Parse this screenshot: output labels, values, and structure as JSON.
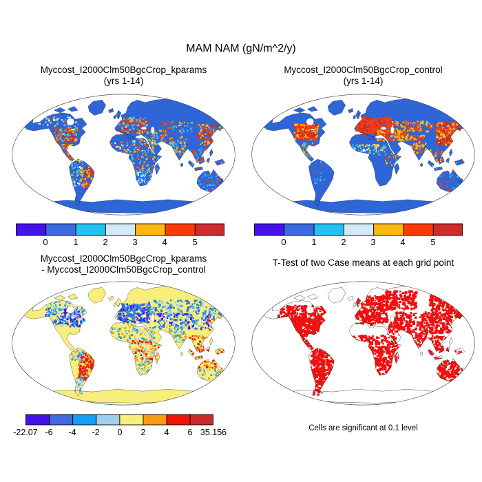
{
  "figure": {
    "title": "MAM NAM (gN/m^2/y)"
  },
  "panels": {
    "kparams": {
      "title1": "Myccost_I2000Clm50BgcCrop_kparams",
      "title2": "(yrs 1-14)"
    },
    "control": {
      "title1": "Myccost_I2000Clm50BgcCrop_control",
      "title2": "(yrs 1-14)"
    },
    "diff": {
      "title1": "Myccost_I2000Clm50BgcCrop_kparams",
      "title2": "- Myccost_I2000Clm50BgcCrop_control"
    },
    "ttest": {
      "title": "T-Test of two Case means at each grid point",
      "caption": "Cells are significant at 0.1 level"
    }
  },
  "colorbars": {
    "top": {
      "colors": [
        "#4513ea",
        "#3c6ae1",
        "#25c1f0",
        "#d4eaf6",
        "#fdb813",
        "#fb3c0a",
        "#cc2c2c"
      ],
      "ticks": [
        "0",
        "1",
        "2",
        "3",
        "4",
        "5"
      ]
    },
    "diff": {
      "colors": [
        "#4513ea",
        "#3f6ad9",
        "#149ef5",
        "#a0cfe9",
        "#f9ee78",
        "#fa9c12",
        "#f01507",
        "#cd2b2b"
      ],
      "ticks": [
        "-22.07",
        "-6",
        "-4",
        "-2",
        "0",
        "2",
        "4",
        "6",
        "35.156"
      ]
    }
  },
  "maps": {
    "kparams": {
      "land_color": "#2e66d8",
      "ocean_color": "#ffffff"
    },
    "control": {
      "land_color": "#2e66d8",
      "ocean_color": "#ffffff"
    },
    "diff": {
      "land_color": "#f7ee7c",
      "ocean_color": "#ffffff"
    },
    "ttest": {
      "land_color": "#ffffff",
      "ocean_color": "#ffffff",
      "significant_color": "#ee1111"
    }
  }
}
